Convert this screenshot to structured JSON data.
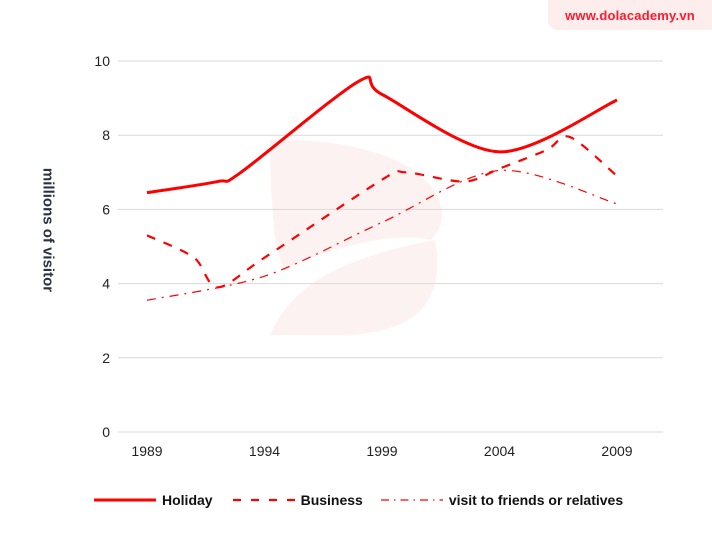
{
  "watermark": {
    "site": "www.dolacademy.vn",
    "badge_bg": "#fdeded",
    "text_color": "#ff1a2b"
  },
  "chart_data": {
    "type": "line",
    "title": "",
    "xlabel": "",
    "ylabel": "millions of visitor",
    "ylim": [
      0,
      10
    ],
    "yticks": [
      0,
      2,
      4,
      6,
      8,
      10
    ],
    "xticks": [
      "1989",
      "1994",
      "1999",
      "2004",
      "2009"
    ],
    "xlim": [
      1989,
      2009
    ],
    "grid": "horizontal",
    "legend_position": "bottom",
    "color": "#ff0000",
    "series": [
      {
        "name": "Holiday",
        "style": "solid",
        "points": [
          [
            1989,
            6.45
          ],
          [
            1992,
            6.75
          ],
          [
            1993,
            7.0
          ],
          [
            1998,
            9.45
          ],
          [
            1999,
            9.1
          ],
          [
            2004,
            7.55
          ],
          [
            2009,
            8.95
          ]
        ]
      },
      {
        "name": "Business",
        "style": "dashed",
        "points": [
          [
            1989,
            5.3
          ],
          [
            1991,
            4.7
          ],
          [
            1992,
            3.9
          ],
          [
            1994,
            4.7
          ],
          [
            1999,
            6.8
          ],
          [
            2000,
            7.0
          ],
          [
            2002.5,
            6.75
          ],
          [
            2004,
            7.1
          ],
          [
            2006,
            7.6
          ],
          [
            2007,
            7.95
          ],
          [
            2009,
            6.9
          ]
        ]
      },
      {
        "name": "visit to friends or relatives",
        "style": "dash-dot",
        "points": [
          [
            1989,
            3.55
          ],
          [
            1994,
            4.2
          ],
          [
            1999,
            5.65
          ],
          [
            2004,
            7.05
          ],
          [
            2009,
            6.15
          ]
        ]
      }
    ]
  },
  "legend": {
    "items": [
      "Holiday",
      "Business",
      "visit to friends or relatives"
    ]
  }
}
